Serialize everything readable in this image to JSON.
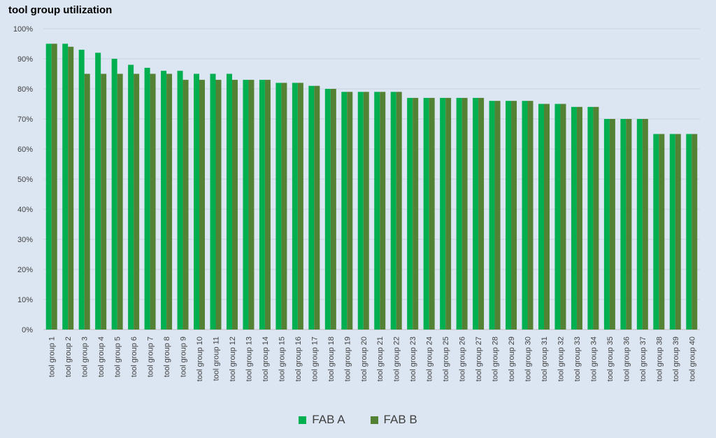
{
  "chart_data": {
    "type": "bar",
    "title": "tool group utilization",
    "categories": [
      "tool group 1",
      "tool group 2",
      "tool group 3",
      "tool group 4",
      "tool group 5",
      "tool group 6",
      "tool group 7",
      "tool group 8",
      "tool group 9",
      "tool group 10",
      "tool group 11",
      "tool group 12",
      "tool group 13",
      "tool group 14",
      "tool group 15",
      "tool group 16",
      "tool group 17",
      "tool group 18",
      "tool group 19",
      "tool group 20",
      "tool group 21",
      "tool group 22",
      "tool group 23",
      "tool group 24",
      "tool group 25",
      "tool group 26",
      "tool group 27",
      "tool group 28",
      "tool group 29",
      "tool group 30",
      "tool group 31",
      "tool group 32",
      "tool group 33",
      "tool group 34",
      "tool group 35",
      "tool group 36",
      "tool group 37",
      "tool group 38",
      "tool group 39",
      "tool group 40"
    ],
    "series": [
      {
        "name": "FAB A",
        "color": "#00b050",
        "values": [
          95,
          95,
          93,
          92,
          90,
          88,
          87,
          86,
          86,
          85,
          85,
          85,
          83,
          83,
          82,
          82,
          81,
          80,
          79,
          79,
          79,
          79,
          77,
          77,
          77,
          77,
          77,
          76,
          76,
          76,
          75,
          75,
          74,
          74,
          70,
          70,
          70,
          65,
          65,
          65
        ]
      },
      {
        "name": "FAB B",
        "color": "#548235",
        "values": [
          95,
          94,
          85,
          85,
          85,
          85,
          85,
          85,
          83,
          83,
          83,
          83,
          83,
          83,
          82,
          82,
          81,
          80,
          79,
          79,
          79,
          79,
          77,
          77,
          77,
          77,
          77,
          76,
          76,
          76,
          75,
          75,
          74,
          74,
          70,
          70,
          70,
          65,
          65,
          65
        ]
      }
    ],
    "ylim": [
      0,
      100
    ],
    "yticks": [
      "0%",
      "10%",
      "20%",
      "30%",
      "40%",
      "50%",
      "60%",
      "70%",
      "80%",
      "90%",
      "100%"
    ],
    "grid": true,
    "legend_position": "bottom"
  }
}
